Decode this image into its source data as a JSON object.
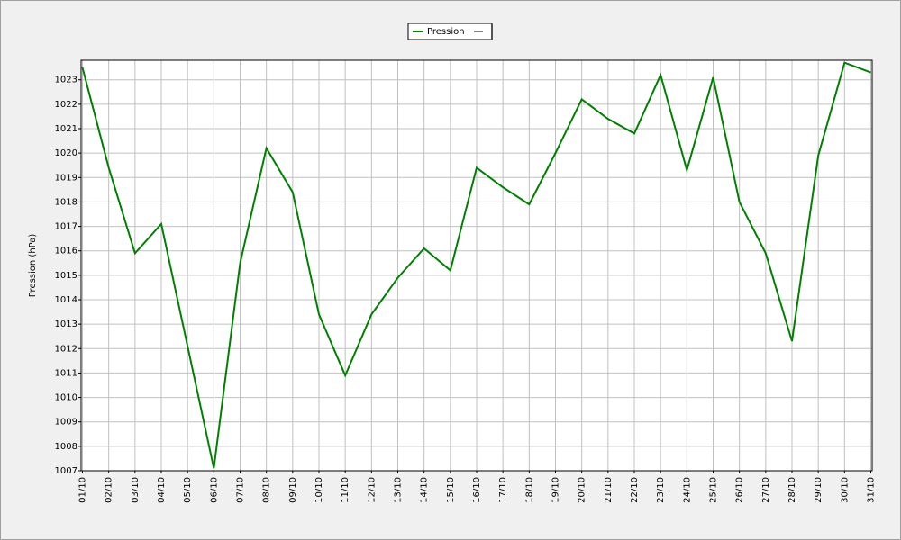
{
  "chart_data": {
    "type": "line",
    "y_label": "Pression (hPa)",
    "categories": [
      "01/10",
      "02/10",
      "03/10",
      "04/10",
      "05/10",
      "06/10",
      "07/10",
      "08/10",
      "09/10",
      "10/10",
      "11/10",
      "12/10",
      "13/10",
      "14/10",
      "15/10",
      "16/10",
      "17/10",
      "18/10",
      "19/10",
      "20/10",
      "21/10",
      "22/10",
      "23/10",
      "24/10",
      "25/10",
      "26/10",
      "27/10",
      "28/10",
      "29/10",
      "30/10",
      "31/10"
    ],
    "series": [
      {
        "name": "Pression",
        "color": "#008000",
        "values": [
          1023.5,
          1019.4,
          1015.9,
          1017.1,
          1012.1,
          1007.1,
          1015.5,
          1020.2,
          1018.4,
          1013.4,
          1010.9,
          1013.4,
          1014.9,
          1016.1,
          1015.2,
          1019.4,
          1018.6,
          1017.9,
          1020.0,
          1022.2,
          1021.4,
          1020.8,
          1023.2,
          1019.3,
          1023.1,
          1018.0,
          1015.9,
          1012.3,
          1019.9,
          1023.7,
          1023.3
        ]
      }
    ],
    "ylim": [
      1007,
      1023.8
    ],
    "yticks": [
      1007,
      1008,
      1009,
      1010,
      1011,
      1012,
      1013,
      1014,
      1015,
      1016,
      1017,
      1018,
      1019,
      1020,
      1021,
      1022,
      1023
    ],
    "grid": true
  }
}
